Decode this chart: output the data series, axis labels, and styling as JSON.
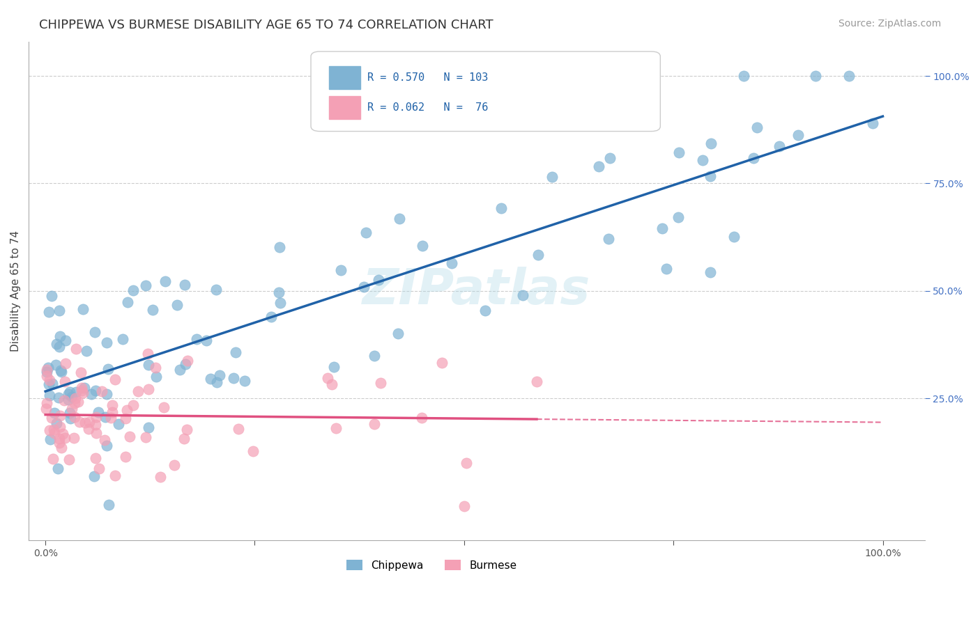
{
  "title": "CHIPPEWA VS BURMESE DISABILITY AGE 65 TO 74 CORRELATION CHART",
  "source_text": "Source: ZipAtlas.com",
  "ylabel": "Disability Age 65 to 74",
  "chippewa_R": 0.57,
  "chippewa_N": 103,
  "burmese_R": 0.062,
  "burmese_N": 76,
  "chippewa_color": "#7fb3d3",
  "burmese_color": "#f4a0b5",
  "chippewa_line_color": "#2062a8",
  "burmese_line_color": "#e05080",
  "legend_text_color": "#2062a8",
  "title_color": "#333333",
  "watermark_text": "ZIPatlas",
  "background_color": "#ffffff",
  "grid_color": "#cccccc"
}
